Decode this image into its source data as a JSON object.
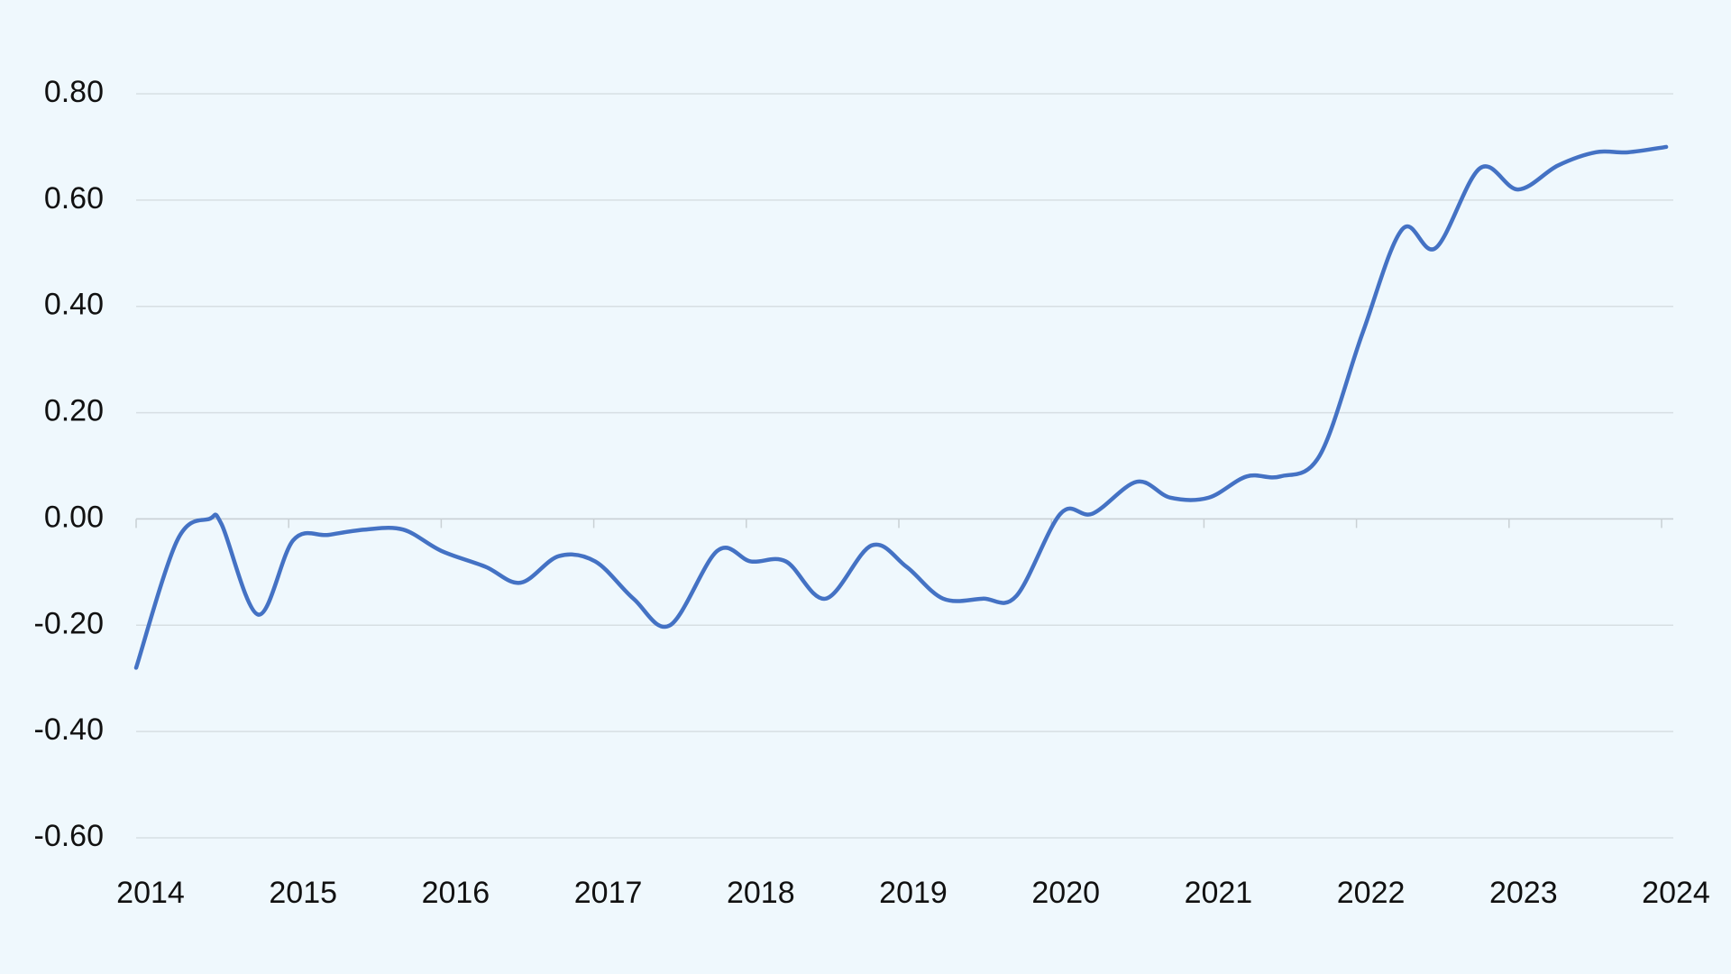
{
  "chart_data": {
    "type": "line",
    "x": [
      2014.0,
      2014.27,
      2014.48,
      2014.56,
      2014.8,
      2015.03,
      2015.26,
      2015.5,
      2015.75,
      2016.0,
      2016.29,
      2016.52,
      2016.77,
      2017.01,
      2017.26,
      2017.5,
      2017.81,
      2018.03,
      2018.26,
      2018.52,
      2018.82,
      2019.05,
      2019.29,
      2019.55,
      2019.77,
      2020.06,
      2020.27,
      2020.56,
      2020.78,
      2021.03,
      2021.28,
      2021.5,
      2021.76,
      2022.04,
      2022.3,
      2022.52,
      2022.81,
      2023.06,
      2023.32,
      2023.57,
      2023.78,
      2024.03
    ],
    "series": [
      {
        "color": "#4472c4",
        "values": [
          -0.28,
          -0.04,
          0.0,
          -0.01,
          -0.18,
          -0.04,
          -0.03,
          -0.02,
          -0.02,
          -0.06,
          -0.09,
          -0.12,
          -0.07,
          -0.08,
          -0.15,
          -0.2,
          -0.06,
          -0.08,
          -0.08,
          -0.15,
          -0.05,
          -0.09,
          -0.15,
          -0.15,
          -0.145,
          0.01,
          0.01,
          0.07,
          0.04,
          0.04,
          0.08,
          0.08,
          0.12,
          0.35,
          0.545,
          0.51,
          0.66,
          0.62,
          0.665,
          0.69,
          0.69,
          0.7
        ]
      }
    ],
    "xlim": [
      2014,
      2024
    ],
    "xticks": [
      2014,
      2015,
      2016,
      2017,
      2018,
      2019,
      2020,
      2021,
      2022,
      2023,
      2024
    ],
    "ylim": [
      -0.6,
      0.8
    ],
    "yticks": [
      {
        "value": -0.6,
        "label": "-0.60"
      },
      {
        "value": -0.4,
        "label": "-0.40"
      },
      {
        "value": -0.2,
        "label": "-0.20"
      },
      {
        "value": 0,
        "label": "0.00"
      },
      {
        "value": 0.2,
        "label": "0.20"
      },
      {
        "value": 0.4,
        "label": "0.40"
      },
      {
        "value": 0.6,
        "label": "0.60"
      },
      {
        "value": 0.8,
        "label": "0.80"
      }
    ],
    "grid": true
  }
}
